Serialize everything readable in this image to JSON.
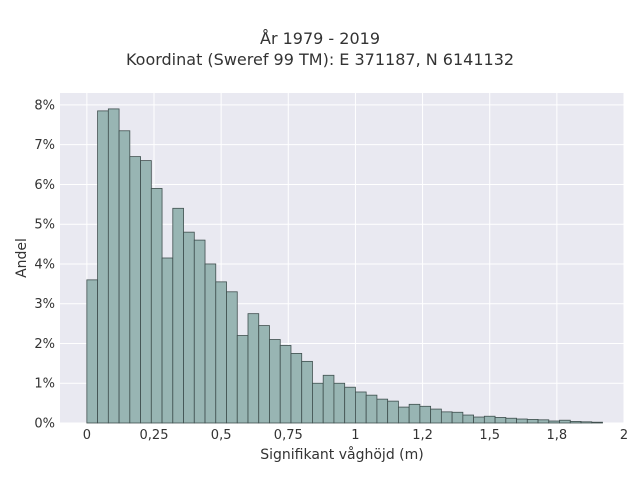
{
  "chart_data": {
    "type": "bar",
    "title": "År 1979 - 2019",
    "subtitle": "Koordinat (Sweref 99 TM): E 371187, N 6141132",
    "xlabel": "Signifikant våghöjd (m)",
    "ylabel": "Andel",
    "xlim": [
      -0.1,
      2.0
    ],
    "ylim": [
      0,
      8.3
    ],
    "bin_width": 0.04,
    "x_ticks": [
      0,
      0.25,
      0.5,
      0.75,
      1,
      1.25,
      1.5,
      1.75,
      2
    ],
    "x_tick_labels": [
      "0",
      "0,25",
      "0,5",
      "0,75",
      "1",
      "1,2",
      "1,5",
      "1,8",
      "2"
    ],
    "y_ticks": [
      0,
      1,
      2,
      3,
      4,
      5,
      6,
      7,
      8
    ],
    "y_tick_labels": [
      "0%",
      "1%",
      "2%",
      "3%",
      "4%",
      "5%",
      "6%",
      "7%",
      "8%"
    ],
    "grid": true,
    "bin_starts": [
      0.0,
      0.04,
      0.08,
      0.12,
      0.16,
      0.2,
      0.24,
      0.28,
      0.32,
      0.36,
      0.4,
      0.44,
      0.48,
      0.52,
      0.56,
      0.6,
      0.64,
      0.68,
      0.72,
      0.76,
      0.8,
      0.84,
      0.88,
      0.92,
      0.96,
      1.0,
      1.04,
      1.08,
      1.12,
      1.16,
      1.2,
      1.24,
      1.28,
      1.32,
      1.36,
      1.4,
      1.44,
      1.48,
      1.52,
      1.56,
      1.6,
      1.64,
      1.68,
      1.72,
      1.76,
      1.8,
      1.84,
      1.88
    ],
    "values": [
      3.6,
      7.85,
      7.9,
      7.35,
      6.7,
      6.6,
      5.9,
      4.15,
      5.4,
      4.8,
      4.6,
      4.0,
      3.55,
      3.3,
      2.2,
      2.75,
      2.45,
      2.1,
      1.95,
      1.75,
      1.55,
      1.0,
      1.2,
      1.0,
      0.9,
      0.78,
      0.7,
      0.6,
      0.55,
      0.4,
      0.47,
      0.42,
      0.35,
      0.28,
      0.27,
      0.2,
      0.15,
      0.17,
      0.14,
      0.12,
      0.1,
      0.09,
      0.08,
      0.05,
      0.07,
      0.04,
      0.03,
      0.02
    ],
    "colors": {
      "bar_fill": "#98b5b3",
      "bar_stroke": "#3f4f4e",
      "plot_bg": "#e9e9f1",
      "grid": "#ffffff"
    }
  }
}
